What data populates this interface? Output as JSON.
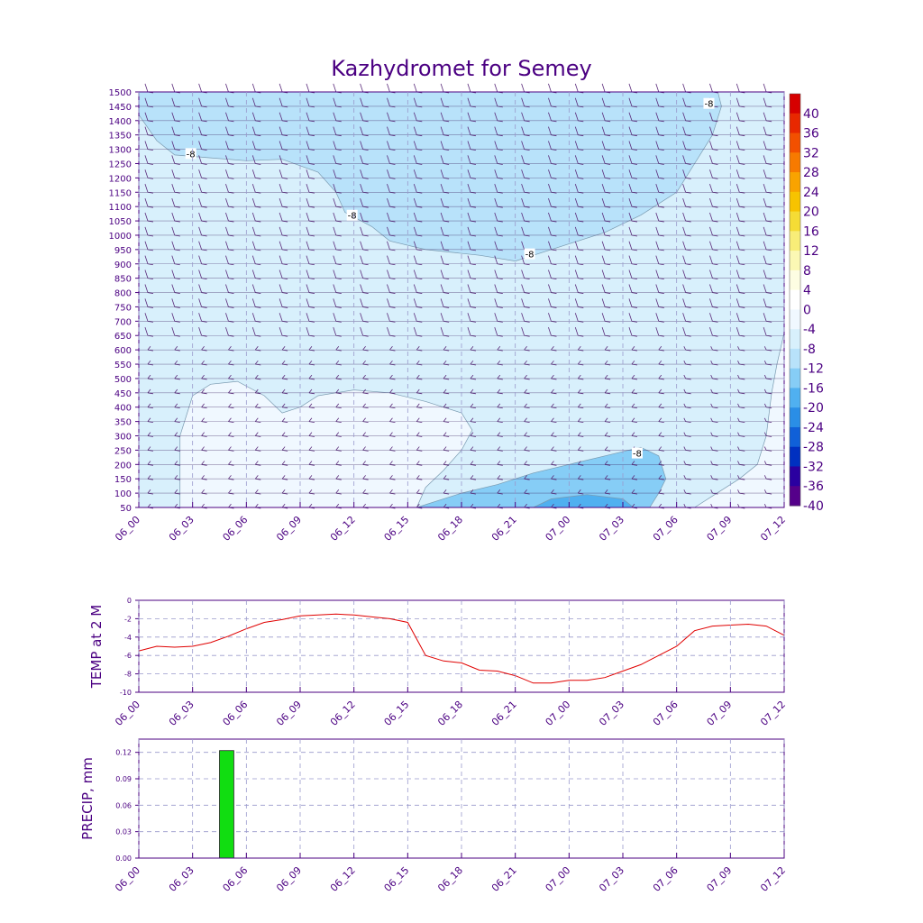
{
  "title": "Kazhydromet for Semey",
  "colors": {
    "axis": "#4b0082",
    "grid": "#9999cc",
    "temp_line": "#e00000",
    "precip_bar": "#11dd11",
    "contour_line": "#7a9ab0"
  },
  "time_ticks": [
    "06_00",
    "06_03",
    "06_06",
    "06_09",
    "06_12",
    "06_15",
    "06_18",
    "06_21",
    "07_00",
    "07_03",
    "07_06",
    "07_09",
    "07_12"
  ],
  "chart_data": [
    {
      "type": "heatmap",
      "title": "Kazhydromet for Semey",
      "xlabel": "",
      "ylabel": "",
      "x_range_hours": [
        0,
        36
      ],
      "y_range": [
        50,
        1500
      ],
      "y_ticks": [
        50,
        100,
        150,
        200,
        250,
        300,
        350,
        400,
        450,
        500,
        550,
        600,
        650,
        700,
        750,
        800,
        850,
        900,
        950,
        1000,
        1050,
        1100,
        1150,
        1200,
        1250,
        1300,
        1350,
        1400,
        1450,
        1500
      ],
      "grid": true,
      "colorbar": {
        "position": "right",
        "labels": [
          "40",
          "36",
          "32",
          "28",
          "24",
          "20",
          "16",
          "12",
          "8",
          "4",
          "0",
          "-4",
          "-8",
          "-12",
          "-16",
          "-20",
          "-24",
          "-28",
          "-32",
          "-36",
          "-40"
        ],
        "colors": [
          "#d60000",
          "#e82800",
          "#f25000",
          "#f77a00",
          "#f9a300",
          "#f7c300",
          "#f5dc35",
          "#f8ed78",
          "#fbf8b4",
          "#fdfde2",
          "#ffffff",
          "#f0f8ff",
          "#d8f0fc",
          "#b8e2fa",
          "#86cdf6",
          "#50b0f0",
          "#2a8ee6",
          "#1060d8",
          "#0030c0",
          "#2a00a0",
          "#55008a"
        ]
      },
      "contour_labels": [
        {
          "text": "-8",
          "hour": 2.9,
          "level": 1285
        },
        {
          "text": "-8",
          "hour": 11.9,
          "level": 1070
        },
        {
          "text": "-8",
          "hour": 21.8,
          "level": 935
        },
        {
          "text": "-8",
          "hour": 31.8,
          "level": 1460
        },
        {
          "text": "-8",
          "hour": 27.8,
          "level": 240
        }
      ],
      "wind_barbs": true
    },
    {
      "type": "line",
      "ylabel": "TEMP at 2 M",
      "xlabel": "",
      "ylim": [
        -10,
        0
      ],
      "y_ticks": [
        "0",
        "-2",
        "-4",
        "-6",
        "-8",
        "-10"
      ],
      "grid": true,
      "x_hours": [
        0,
        1,
        2,
        3,
        4,
        5,
        6,
        7,
        8,
        9,
        10,
        11,
        12,
        13,
        14,
        15,
        16,
        17,
        18,
        19,
        20,
        21,
        22,
        23,
        24,
        25,
        26,
        27,
        28,
        29,
        30,
        31,
        32,
        33,
        34,
        35,
        36
      ],
      "series": [
        {
          "values": [
            -5.5,
            -5.0,
            -5.1,
            -5.0,
            -4.6,
            -3.9,
            -3.1,
            -2.4,
            -2.1,
            -1.7,
            -1.6,
            -1.5,
            -1.6,
            -1.8,
            -2.0,
            -2.4,
            -6.0,
            -6.6,
            -6.8,
            -7.6,
            -7.7,
            -8.2,
            -9.0,
            -9.0,
            -8.7,
            -8.7,
            -8.4,
            -7.7,
            -7.0,
            -6.0,
            -5.0,
            -3.3,
            -2.8,
            -2.7,
            -2.6,
            -2.8,
            -3.8
          ]
        }
      ]
    },
    {
      "type": "bar",
      "ylabel": "PRECIP, mm",
      "xlabel": "",
      "ylim": [
        0,
        0.135
      ],
      "y_ticks": [
        "0.12",
        "0.09",
        "0.06",
        "0.03",
        "0.00"
      ],
      "grid": true,
      "bars": [
        {
          "hour_start": 4.5,
          "hour_end": 5.3,
          "value": 0.122
        }
      ]
    }
  ]
}
